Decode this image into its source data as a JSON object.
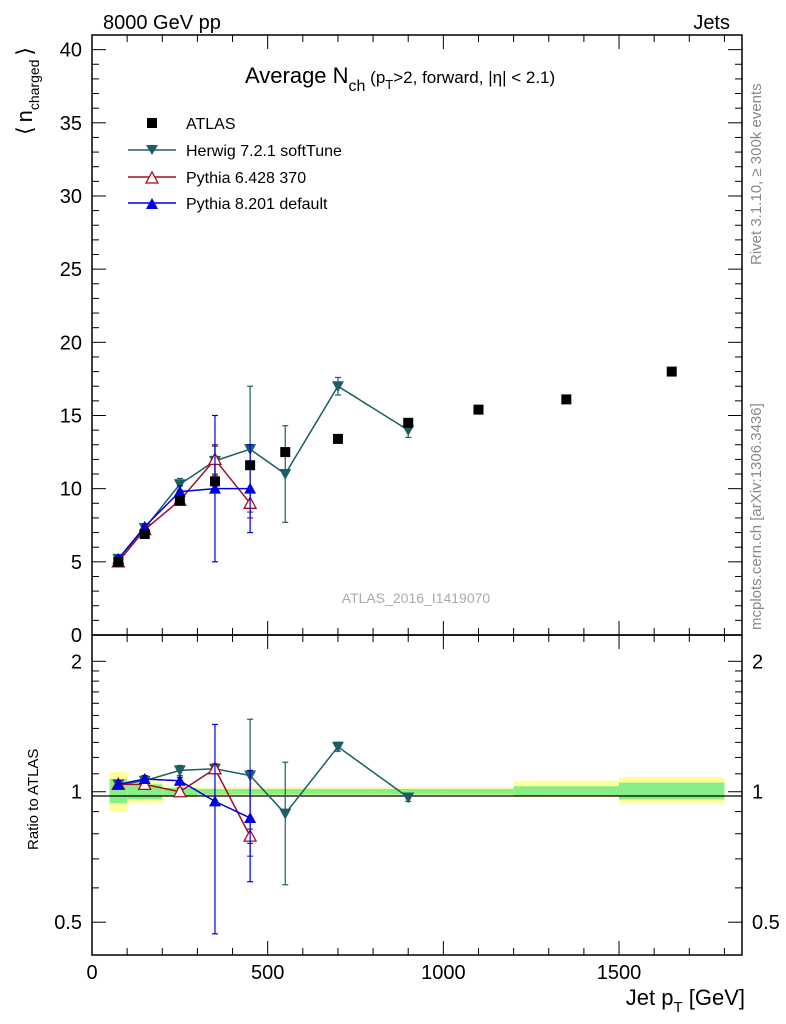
{
  "header": {
    "left": "8000 GeV pp",
    "right": "Jets",
    "side_top": "Rivet 3.1.10, ≥ 300k events",
    "side_bottom": "mcplots.cern.ch [arXiv:1306.3436]"
  },
  "colors": {
    "atlas": "#000000",
    "herwig": "#1b5e63",
    "pythia6": "#a01020",
    "pythia8": "#0000e0",
    "band_inner": "#88ee88",
    "band_outer": "#ffff99"
  },
  "chart_data": [
    {
      "type": "line",
      "title": "Average N_ch (p_T>2, forward, |η| < 2.1)",
      "title_parts": {
        "main": "Average N",
        "sub": "ch",
        "open": " (p",
        "sub2": "T",
        "rest": ">2, forward, |η| < 2.1)"
      },
      "ylabel": "⟨ n_charged ⟩",
      "ylabel_parts": {
        "bracket_l": "⟨",
        "n": "n",
        "sub": "charged",
        "bracket_r": "⟩"
      },
      "xlim": [
        0,
        1850
      ],
      "ylim": [
        0,
        41
      ],
      "yticks": [
        0,
        5,
        10,
        15,
        20,
        25,
        30,
        35,
        40
      ],
      "ytick_labels": [
        "0",
        "5",
        "10",
        "15",
        "20",
        "25",
        "30",
        "35",
        "40"
      ],
      "watermark": "ATLAS_2016_I1419070",
      "legend_position": "top-left",
      "legend": [
        "ATLAS",
        "Herwig 7.2.1 softTune",
        "Pythia 6.428 370",
        "Pythia 8.201 default"
      ],
      "series": [
        {
          "name": "ATLAS",
          "marker": "square",
          "line": false,
          "x": [
            75,
            150,
            250,
            350,
            450,
            550,
            700,
            900,
            1100,
            1350,
            1650
          ],
          "y": [
            5.0,
            6.9,
            9.2,
            10.5,
            11.6,
            12.5,
            13.4,
            14.5,
            15.4,
            16.1,
            18.0
          ],
          "yerr": [
            0.1,
            0.1,
            0.1,
            0.1,
            0.1,
            0.1,
            0.1,
            0.1,
            0.1,
            0.1,
            0.1
          ]
        },
        {
          "name": "Herwig 7.2.1 softTune",
          "marker": "triangle-down",
          "line": true,
          "x": [
            75,
            150,
            250,
            350,
            450,
            550,
            700,
            900
          ],
          "y": [
            5.2,
            7.3,
            10.3,
            11.9,
            12.7,
            11.0,
            17.0,
            14.0
          ],
          "yerr": [
            0.2,
            0.2,
            0.4,
            1.0,
            4.3,
            3.3,
            0.6,
            0.5
          ]
        },
        {
          "name": "Pythia 6.428 370",
          "marker": "triangle-open",
          "line": true,
          "x": [
            75,
            150,
            250,
            350,
            450
          ],
          "y": [
            5.0,
            7.2,
            9.2,
            12.0,
            9.0
          ],
          "yerr": [
            0.2,
            0.2,
            0.3,
            1.0,
            1.0
          ]
        },
        {
          "name": "Pythia 8.201 default",
          "marker": "triangle-up",
          "line": true,
          "x": [
            75,
            150,
            250,
            350,
            450
          ],
          "y": [
            5.2,
            7.4,
            9.8,
            10.0,
            10.0
          ],
          "yerr": [
            0.2,
            0.2,
            0.4,
            5.0,
            3.0
          ]
        }
      ]
    },
    {
      "type": "line",
      "ylabel": "Ratio to ATLAS",
      "xlabel": "Jet p_T [GeV]",
      "xlabel_parts": {
        "main": "Jet p",
        "sub": "T",
        "rest": " [GeV]"
      },
      "xlim": [
        0,
        1850
      ],
      "ylim": [
        0.42,
        2.3
      ],
      "log_y": true,
      "xticks": [
        0,
        500,
        1000,
        1500
      ],
      "xtick_labels": [
        "0",
        "500",
        "1000",
        "1500"
      ],
      "yticks": [
        0.5,
        1,
        2
      ],
      "ytick_labels": [
        "0.5",
        "1",
        "2"
      ],
      "bands": [
        {
          "x0": 50,
          "x1": 100,
          "inner": [
            0.94,
            1.07
          ],
          "outer": [
            0.9,
            1.11
          ]
        },
        {
          "x0": 100,
          "x1": 200,
          "inner": [
            0.96,
            1.04
          ],
          "outer": [
            0.94,
            1.06
          ]
        },
        {
          "x0": 200,
          "x1": 300,
          "inner": [
            0.98,
            1.02
          ],
          "outer": [
            0.97,
            1.03
          ]
        },
        {
          "x0": 300,
          "x1": 400,
          "inner": [
            0.985,
            1.015
          ],
          "outer": [
            0.975,
            1.025
          ]
        },
        {
          "x0": 400,
          "x1": 500,
          "inner": [
            0.985,
            1.015
          ],
          "outer": [
            0.975,
            1.025
          ]
        },
        {
          "x0": 500,
          "x1": 600,
          "inner": [
            0.985,
            1.015
          ],
          "outer": [
            0.975,
            1.025
          ]
        },
        {
          "x0": 600,
          "x1": 800,
          "inner": [
            0.985,
            1.015
          ],
          "outer": [
            0.975,
            1.025
          ]
        },
        {
          "x0": 800,
          "x1": 1000,
          "inner": [
            0.985,
            1.015
          ],
          "outer": [
            0.975,
            1.025
          ]
        },
        {
          "x0": 1000,
          "x1": 1200,
          "inner": [
            0.985,
            1.015
          ],
          "outer": [
            0.975,
            1.025
          ]
        },
        {
          "x0": 1200,
          "x1": 1500,
          "inner": [
            0.98,
            1.03
          ],
          "outer": [
            0.97,
            1.06
          ]
        },
        {
          "x0": 1500,
          "x1": 1800,
          "inner": [
            0.96,
            1.05
          ],
          "outer": [
            0.94,
            1.08
          ]
        }
      ],
      "series": [
        {
          "name": "Herwig 7.2.1 softTune",
          "marker": "triangle-down",
          "x": [
            75,
            150,
            250,
            350,
            450,
            550,
            700,
            900
          ],
          "y": [
            1.04,
            1.06,
            1.12,
            1.13,
            1.09,
            0.89,
            1.27,
            0.97
          ],
          "yerr": [
            0.02,
            0.02,
            0.03,
            0.03,
            0.38,
            0.28,
            0.03,
            0.02
          ]
        },
        {
          "name": "Pythia 6.428 370",
          "marker": "triangle-open",
          "x": [
            75,
            150,
            250,
            350,
            450
          ],
          "y": [
            1.04,
            1.04,
            1.0,
            1.13,
            0.79
          ],
          "yerr": [
            0.02,
            0.02,
            0.02,
            0.03,
            0.03
          ]
        },
        {
          "name": "Pythia 8.201 default",
          "marker": "triangle-up",
          "x": [
            75,
            150,
            250,
            350,
            450
          ],
          "y": [
            1.04,
            1.07,
            1.06,
            0.95,
            0.87
          ],
          "yerr": [
            0.02,
            0.02,
            0.02,
            0.48,
            0.25
          ]
        }
      ]
    }
  ]
}
